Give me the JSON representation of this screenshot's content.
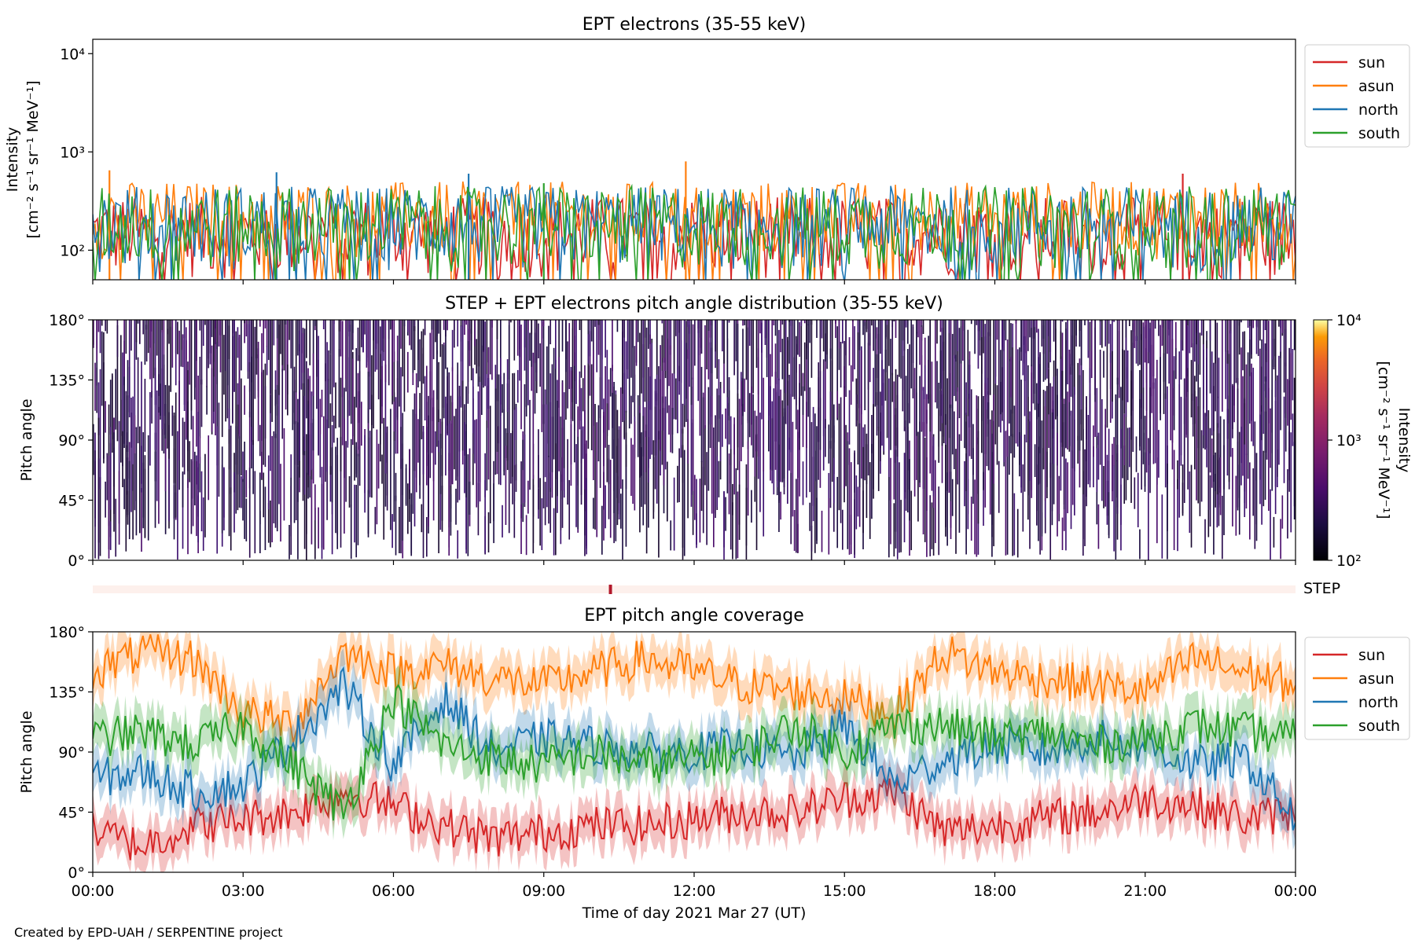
{
  "figure": {
    "footer": "Created by EPD-UAH / SERPENTINE project",
    "xlabel": "Time of day 2021 Mar 27 (UT)",
    "xticks": [
      "00:00",
      "03:00",
      "06:00",
      "09:00",
      "12:00",
      "15:00",
      "18:00",
      "21:00",
      "00:00"
    ]
  },
  "panel1": {
    "title": "EPT electrons (35-55 keV)",
    "ylabel_line1": "Intensity",
    "ylabel_line2": "[cm⁻² s⁻¹ sr⁻¹ MeV⁻¹]",
    "yticks": [
      "10²",
      "10³",
      "10⁴"
    ]
  },
  "panel2": {
    "title": "STEP + EPT electrons pitch angle distribution (35-55 keV)",
    "ylabel": "Pitch angle",
    "yticks": [
      "0°",
      "45°",
      "90°",
      "135°",
      "180°"
    ],
    "colorbar_label_line1": "Intensity",
    "colorbar_label_line2": "[cm⁻² s⁻¹ sr⁻¹ MeV⁻¹]",
    "colorbar_ticks": [
      "10²",
      "10³",
      "10⁴"
    ]
  },
  "step_strip": {
    "label": "STEP",
    "marker_hour": 10.33
  },
  "panel3": {
    "title": "EPT pitch angle coverage",
    "ylabel": "Pitch angle",
    "yticks": [
      "0°",
      "45°",
      "90°",
      "135°",
      "180°"
    ]
  },
  "colors": {
    "sun": "#d62728",
    "asun": "#ff7f0e",
    "north": "#1f77b4",
    "south": "#2ca02c"
  },
  "chart_data": [
    {
      "type": "line",
      "title": "EPT electrons (35-55 keV)",
      "ylabel": "Intensity [cm⁻² s⁻¹ sr⁻¹ MeV⁻¹]",
      "xlabel": "Time of day 2021 Mar 27 (UT)",
      "yscale": "log",
      "ylim": [
        50,
        14000
      ],
      "xlim": [
        "00:00",
        "24:00"
      ],
      "legend_position": "outside-right-top",
      "series": [
        {
          "name": "sun",
          "color": "#d62728",
          "typical_range": [
            50,
            350
          ],
          "peaks": [
            {
              "t": "21:45",
              "v": 600
            }
          ]
        },
        {
          "name": "asun",
          "color": "#ff7f0e",
          "typical_range": [
            80,
            500
          ],
          "peaks": [
            {
              "t": "11:50",
              "v": 800
            },
            {
              "t": "00:20",
              "v": 650
            }
          ]
        },
        {
          "name": "north",
          "color": "#1f77b4",
          "typical_range": [
            60,
            450
          ],
          "peaks": [
            {
              "t": "03:40",
              "v": 620
            },
            {
              "t": "07:30",
              "v": 600
            }
          ]
        },
        {
          "name": "south",
          "color": "#2ca02c",
          "typical_range": [
            60,
            450
          ],
          "peaks": [
            {
              "t": "09:00",
              "v": 480
            }
          ]
        }
      ]
    },
    {
      "type": "heatmap",
      "title": "STEP + EPT electrons pitch angle distribution (35-55 keV)",
      "ylabel": "Pitch angle",
      "ylim": [
        0,
        180
      ],
      "colorbar": {
        "scale": "log",
        "range": [
          100,
          10000
        ],
        "colormap": "inferno"
      },
      "typical_intensity": 200
    },
    {
      "type": "line",
      "title": "EPT pitch angle coverage",
      "ylabel": "Pitch angle",
      "xlabel": "Time of day 2021 Mar 27 (UT)",
      "ylim": [
        0,
        180
      ],
      "xlim": [
        "00:00",
        "24:00"
      ],
      "legend_position": "outside-right-top",
      "series": [
        {
          "name": "sun",
          "color": "#d62728",
          "hours": [
            0,
            1,
            2,
            3,
            4,
            5,
            6,
            7,
            8,
            9,
            10,
            11,
            12,
            13,
            14,
            15,
            16,
            17,
            18,
            19,
            20,
            21,
            22,
            23,
            24
          ],
          "values": [
            30,
            20,
            35,
            40,
            45,
            60,
            50,
            35,
            25,
            30,
            35,
            35,
            40,
            45,
            45,
            55,
            60,
            30,
            35,
            40,
            45,
            55,
            50,
            40,
            45
          ]
        },
        {
          "name": "asun",
          "color": "#ff7f0e",
          "hours": [
            0,
            1,
            2,
            3,
            4,
            5,
            6,
            7,
            8,
            9,
            10,
            11,
            12,
            13,
            14,
            15,
            16,
            17,
            18,
            19,
            20,
            21,
            22,
            23,
            24
          ],
          "values": [
            150,
            165,
            160,
            120,
            110,
            165,
            150,
            155,
            145,
            140,
            150,
            160,
            150,
            140,
            135,
            130,
            120,
            165,
            150,
            145,
            140,
            135,
            160,
            150,
            140
          ]
        },
        {
          "name": "north",
          "color": "#1f77b4",
          "hours": [
            0,
            1,
            2,
            3,
            4,
            5,
            6,
            7,
            8,
            9,
            10,
            11,
            12,
            13,
            14,
            15,
            16,
            17,
            18,
            19,
            20,
            21,
            22,
            23,
            24
          ],
          "values": [
            70,
            75,
            60,
            65,
            100,
            140,
            80,
            130,
            90,
            100,
            95,
            90,
            90,
            95,
            85,
            110,
            65,
            85,
            95,
            90,
            100,
            95,
            80,
            85,
            40
          ]
        },
        {
          "name": "south",
          "color": "#2ca02c",
          "hours": [
            0,
            1,
            2,
            3,
            4,
            5,
            6,
            7,
            8,
            9,
            10,
            11,
            12,
            13,
            14,
            15,
            16,
            17,
            18,
            19,
            20,
            21,
            22,
            23,
            24
          ],
          "values": [
            100,
            105,
            95,
            110,
            80,
            45,
            130,
            95,
            85,
            80,
            90,
            80,
            85,
            90,
            110,
            90,
            110,
            110,
            100,
            105,
            95,
            100,
            110,
            105,
            100
          ]
        }
      ]
    }
  ]
}
